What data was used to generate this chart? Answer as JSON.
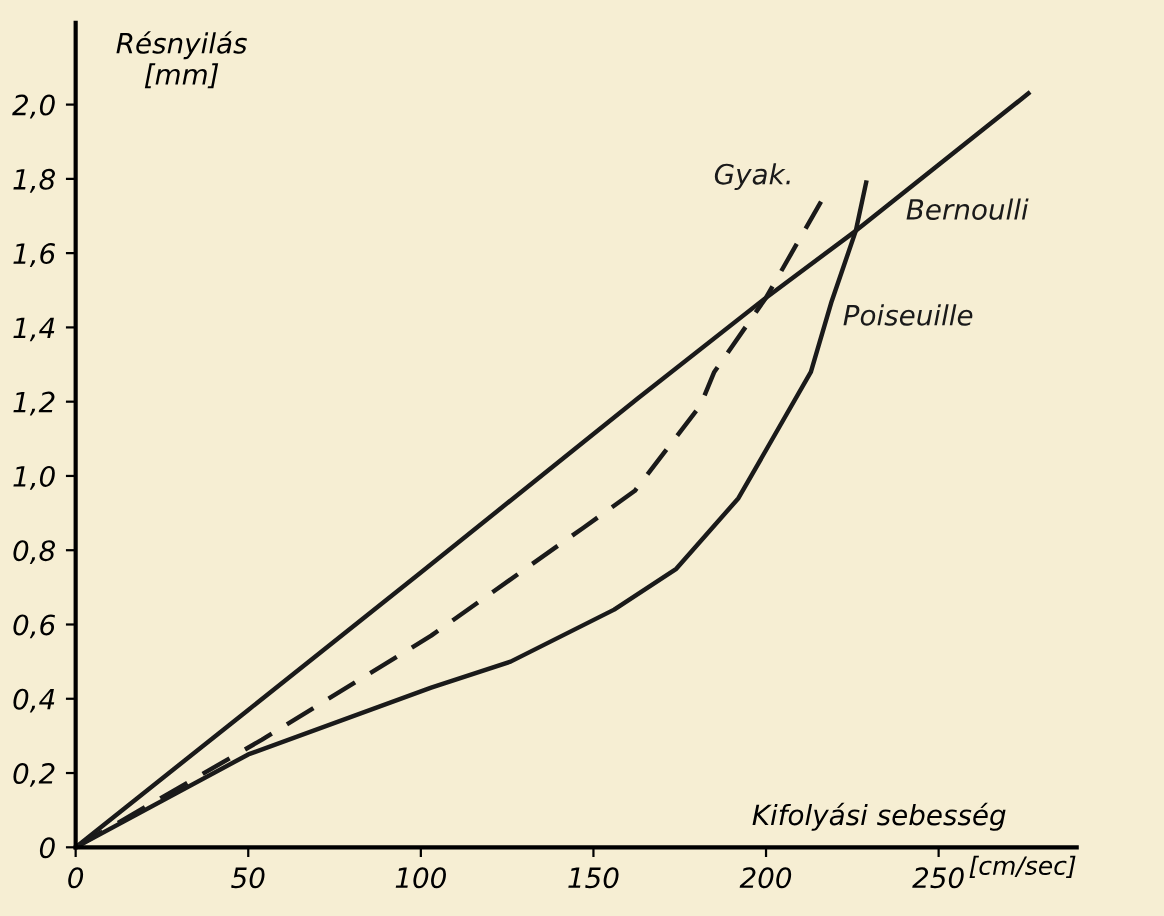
{
  "chart_data": {
    "type": "line",
    "xlabel": "Kifolyási sebesség",
    "ylabel": "Résnyilás\n[mm]",
    "annotations": [
      "[cm/sec]"
    ],
    "xlim": [
      0,
      290
    ],
    "ylim": [
      0,
      2.22
    ],
    "xticks": [
      0,
      50,
      100,
      150,
      200,
      250
    ],
    "yticks": [
      0,
      {
        "value": 0.2,
        "label": "0,2"
      },
      {
        "value": 0.4,
        "label": "0,4"
      },
      {
        "value": 0.6,
        "label": "0,6"
      },
      {
        "value": 0.8,
        "label": "0,8"
      },
      {
        "value": 1.0,
        "label": "1,0"
      },
      {
        "value": 1.2,
        "label": "1,2"
      },
      {
        "value": 1.4,
        "label": "1,4"
      },
      {
        "value": 1.6,
        "label": "1,6"
      },
      {
        "value": 1.8,
        "label": "1,8"
      },
      {
        "value": 2.0,
        "label": "2,0"
      }
    ],
    "grid": false,
    "legend": false,
    "marker": "none",
    "series": [
      {
        "name": "Bernoulli",
        "color": "#1a1a1a",
        "line_style": "solid",
        "x": [
          0,
          50,
          100,
          163,
          200,
          226,
          276
        ],
        "values": [
          0,
          0.37,
          0.74,
          1.21,
          1.48,
          1.66,
          2.03
        ]
      },
      {
        "name": "Gyak.",
        "color": "#1a1a1a",
        "line_style": "dashed",
        "x": [
          0,
          54,
          103,
          147,
          162,
          181,
          185,
          197,
          200,
          216
        ],
        "values": [
          0,
          0.29,
          0.57,
          0.86,
          0.96,
          1.19,
          1.28,
          1.44,
          1.48,
          1.74
        ]
      },
      {
        "name": "Poiseuille",
        "color": "#1a1a1a",
        "line_style": "solid",
        "x": [
          0,
          50,
          103,
          126,
          156,
          174,
          192,
          213,
          219,
          226,
          229
        ],
        "values": [
          0,
          0.25,
          0.43,
          0.5,
          0.64,
          0.75,
          0.94,
          1.28,
          1.47,
          1.66,
          1.79
        ]
      }
    ]
  }
}
